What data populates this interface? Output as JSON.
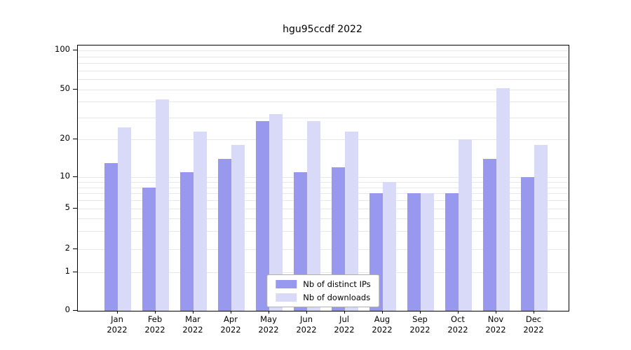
{
  "title": "hgu95ccdf 2022",
  "colors": {
    "ips": "#9898ee",
    "downloads": "#d9d9f8",
    "grid": "#e7e7e7",
    "axis": "#000000",
    "legend_border": "#b0b0b0"
  },
  "y_axis": {
    "ticks": [
      0,
      1,
      2,
      5,
      10,
      20,
      50,
      100
    ]
  },
  "legend": {
    "items": [
      "Nb of distinct IPs",
      "Nb of downloads"
    ]
  },
  "chart_data": {
    "type": "bar",
    "title": "hgu95ccdf 2022",
    "scale": "log",
    "ylim": [
      0,
      100
    ],
    "grid": true,
    "legend_position": "lower center",
    "categories": [
      "Jan",
      "Feb",
      "Mar",
      "Apr",
      "May",
      "Jun",
      "Jul",
      "Aug",
      "Sep",
      "Oct",
      "Nov",
      "Dec"
    ],
    "year": "2022",
    "series": [
      {
        "name": "Nb of distinct IPs",
        "color": "#9898ee",
        "values": [
          13,
          8,
          11,
          14,
          28,
          11,
          12,
          7,
          7,
          7,
          14,
          10
        ]
      },
      {
        "name": "Nb of downloads",
        "color": "#d9d9f8",
        "values": [
          25,
          42,
          23,
          18,
          32,
          28,
          23,
          9,
          7,
          20,
          51,
          18
        ]
      }
    ]
  }
}
